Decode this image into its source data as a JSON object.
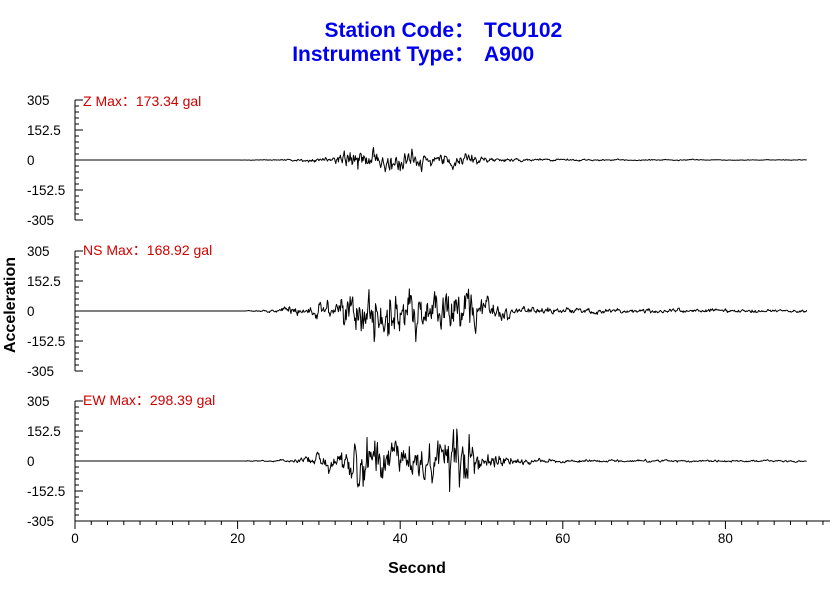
{
  "header": {
    "line1_label": "Station Code：",
    "line1_value": "TCU102",
    "line2_label": "Instrument Type：",
    "line2_value": "A900"
  },
  "colors": {
    "title": "#0000ee",
    "panel_label": "#d00000",
    "trace": "#000000",
    "axis": "#000000"
  },
  "chart_data": {
    "type": "line",
    "xlabel": "Second",
    "ylabel": "Acceleration",
    "xlim": [
      0,
      92
    ],
    "xticks": [
      0,
      20,
      40,
      60,
      80
    ],
    "xtick_labels": [
      "0",
      "20",
      "40",
      "60",
      "80"
    ],
    "ylim": [
      -305,
      305
    ],
    "yticks": [
      305,
      152.5,
      0,
      -152.5,
      -305
    ],
    "ytick_labels": [
      "305",
      "152.5",
      "0",
      "-152.5",
      "-305"
    ],
    "trace_x_range": [
      0,
      90
    ],
    "grid": false,
    "panels": [
      {
        "component": "Z",
        "label": "Z  Max：173.34 gal",
        "peak_gal": 173.34,
        "envelope": [
          [
            0,
            0
          ],
          [
            20,
            0
          ],
          [
            20.5,
            1
          ],
          [
            25,
            3
          ],
          [
            27,
            7
          ],
          [
            30,
            14
          ],
          [
            32,
            30
          ],
          [
            33.5,
            55
          ],
          [
            35,
            70
          ],
          [
            36,
            92
          ],
          [
            38,
            68
          ],
          [
            40,
            78
          ],
          [
            42,
            58
          ],
          [
            44,
            36
          ],
          [
            46,
            42
          ],
          [
            48,
            40
          ],
          [
            50,
            18
          ],
          [
            55,
            10
          ],
          [
            60,
            6
          ],
          [
            70,
            4
          ],
          [
            80,
            2.5
          ],
          [
            90,
            2
          ]
        ]
      },
      {
        "component": "NS",
        "label": "NS  Max：168.92 gal",
        "peak_gal": 168.92,
        "envelope": [
          [
            0,
            0
          ],
          [
            20.9,
            0
          ],
          [
            21,
            2
          ],
          [
            25,
            8
          ],
          [
            26.5,
            35
          ],
          [
            28,
            30
          ],
          [
            30,
            52
          ],
          [
            32,
            68
          ],
          [
            34,
            108
          ],
          [
            36,
            132
          ],
          [
            38,
            158
          ],
          [
            40,
            145
          ],
          [
            42,
            128
          ],
          [
            44,
            120
          ],
          [
            46,
            150
          ],
          [
            48,
            140
          ],
          [
            50,
            90
          ],
          [
            52,
            55
          ],
          [
            55,
            28
          ],
          [
            60,
            18
          ],
          [
            70,
            14
          ],
          [
            80,
            12
          ],
          [
            90,
            10
          ]
        ]
      },
      {
        "component": "EW",
        "label": "EW  Max：298.39 gal",
        "peak_gal": 298.39,
        "envelope": [
          [
            0,
            0
          ],
          [
            20.9,
            0
          ],
          [
            21,
            2
          ],
          [
            26,
            8
          ],
          [
            28,
            24
          ],
          [
            30,
            40
          ],
          [
            32,
            62
          ],
          [
            34,
            128
          ],
          [
            36,
            188
          ],
          [
            38,
            150
          ],
          [
            40,
            108
          ],
          [
            42,
            96
          ],
          [
            44,
            120
          ],
          [
            46,
            150
          ],
          [
            47.5,
            230
          ],
          [
            48.5,
            168
          ],
          [
            50,
            80
          ],
          [
            53,
            38
          ],
          [
            56,
            20
          ],
          [
            60,
            10
          ],
          [
            70,
            8
          ],
          [
            80,
            6
          ],
          [
            90,
            5
          ]
        ]
      }
    ]
  }
}
